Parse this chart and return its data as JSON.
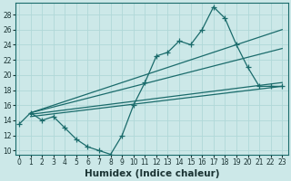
{
  "xlabel": "Humidex (Indice chaleur)",
  "bg_color": "#cce8e8",
  "grid_color": "#b0d8d8",
  "line_color": "#1a6b6b",
  "marker_color": "#1a6b6b",
  "jagged_x": [
    0,
    1,
    2,
    3,
    4,
    5,
    6,
    7,
    8,
    9,
    10,
    11,
    12,
    13,
    14,
    15,
    16,
    17,
    18,
    19,
    20,
    21,
    22,
    23
  ],
  "jagged_y": [
    13.5,
    15.0,
    14.0,
    14.5,
    13.0,
    11.5,
    10.5,
    10.0,
    9.5,
    12.0,
    16.0,
    19.0,
    22.5,
    23.0,
    24.5,
    24.0,
    26.0,
    29.0,
    27.5,
    24.0,
    21.0,
    18.5,
    18.5,
    18.5
  ],
  "trend1_x": [
    1,
    23
  ],
  "trend1_y": [
    15.0,
    26.0
  ],
  "trend2_x": [
    1,
    23
  ],
  "trend2_y": [
    15.0,
    23.5
  ],
  "trend3_x": [
    1,
    23
  ],
  "trend3_y": [
    14.8,
    19.0
  ],
  "trend4_x": [
    1,
    23
  ],
  "trend4_y": [
    14.5,
    18.5
  ],
  "xlim": [
    -0.3,
    23.5
  ],
  "ylim": [
    9.5,
    29.5
  ],
  "yticks": [
    10,
    12,
    14,
    16,
    18,
    20,
    22,
    24,
    26,
    28
  ],
  "xticks": [
    0,
    1,
    2,
    3,
    4,
    5,
    6,
    7,
    8,
    9,
    10,
    11,
    12,
    13,
    14,
    15,
    16,
    17,
    18,
    19,
    20,
    21,
    22,
    23
  ],
  "tick_fontsize": 5.5,
  "xlabel_fontsize": 7.5
}
